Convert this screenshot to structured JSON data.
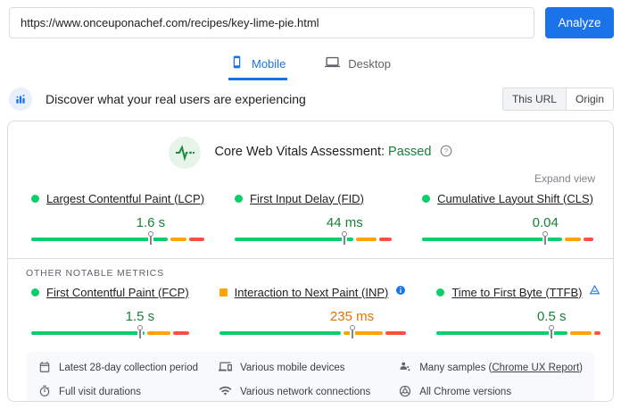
{
  "colors": {
    "accent_blue": "#1a73e8",
    "good_bar": "#0cce6b",
    "good_text": "#188038",
    "ni_bar": "#ffa400",
    "ni_text": "#e37400",
    "poor_bar": "#ff4e42"
  },
  "url_bar": {
    "value": "https://www.onceuponachef.com/recipes/key-lime-pie.html",
    "analyze_label": "Analyze"
  },
  "device_tabs": {
    "mobile_label": "Mobile",
    "desktop_label": "Desktop",
    "selected": "Mobile"
  },
  "field_section": {
    "title": "Discover what your real users are experiencing",
    "scope_options": [
      {
        "label": "This URL",
        "selected": true
      },
      {
        "label": "Origin",
        "selected": false
      }
    ]
  },
  "assessment": {
    "label": "Core Web Vitals Assessment:",
    "result": "Passed"
  },
  "expand_view_label": "Expand view",
  "other_metrics_label": "OTHER NOTABLE METRICS",
  "core_vitals": [
    {
      "name": "Largest Contentful Paint (LCP)",
      "value": "1.6 s",
      "status": "good",
      "marker_pct": 69,
      "distribution": {
        "good": 79,
        "needs_improvement": 9,
        "poor": 9
      }
    },
    {
      "name": "First Input Delay (FID)",
      "value": "44 ms",
      "status": "good",
      "marker_pct": 70,
      "distribution": {
        "good": 76,
        "needs_improvement": 13,
        "poor": 8
      }
    },
    {
      "name": "Cumulative Layout Shift (CLS)",
      "value": "0.04",
      "status": "good",
      "marker_pct": 72,
      "distribution": {
        "good": 82,
        "needs_improvement": 9,
        "poor": 6
      }
    }
  ],
  "other_metrics": [
    {
      "name": "First Contentful Paint (FCP)",
      "value": "1.5 s",
      "status": "good",
      "marker_pct": 69,
      "distribution": {
        "good": 72,
        "needs_improvement": 15,
        "poor": 10
      }
    },
    {
      "name": "Interaction to Next Paint (INP)",
      "value": "235 ms",
      "status": "ni",
      "has_info_icon": true,
      "marker_pct": 71,
      "distribution": {
        "good": 65,
        "needs_improvement": 21,
        "poor": 11
      }
    },
    {
      "name": "Time to First Byte (TTFB)",
      "value": "0.5 s",
      "status": "good",
      "has_experimental_icon": true,
      "marker_pct": 70,
      "distribution": {
        "good": 80,
        "needs_improvement": 13,
        "poor": 4
      }
    }
  ],
  "footer_items": [
    {
      "icon": "calendar-icon",
      "text": "Latest 28-day collection period"
    },
    {
      "icon": "mobile-devices-icon",
      "text": "Various mobile devices"
    },
    {
      "icon": "samples-icon",
      "text_prefix": "Many samples (",
      "link_text": "Chrome UX Report",
      "text_suffix": ")"
    },
    {
      "icon": "stopwatch-icon",
      "text": "Full visit durations"
    },
    {
      "icon": "wifi-icon",
      "text": "Various network connections"
    },
    {
      "icon": "chrome-icon",
      "text": "All Chrome versions"
    }
  ]
}
